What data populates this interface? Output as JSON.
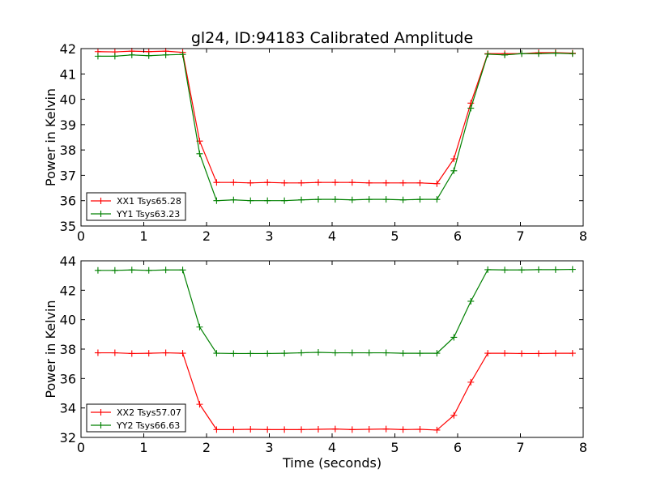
{
  "figure": {
    "title": "gl24, ID:94183 Calibrated Amplitude"
  },
  "chart_data": [
    {
      "type": "line",
      "title": "gl24, ID:94183 Calibrated Amplitude",
      "xlabel": "",
      "ylabel": "Power in Kelvin",
      "xlim": [
        0,
        8
      ],
      "ylim": [
        35,
        42
      ],
      "xticks": [
        0,
        1,
        2,
        3,
        4,
        5,
        6,
        7,
        8
      ],
      "yticks": [
        35,
        36,
        37,
        38,
        39,
        40,
        41,
        42
      ],
      "legend_position": "lower-left",
      "grid": false,
      "x": [
        0.27,
        0.54,
        0.81,
        1.08,
        1.35,
        1.62,
        1.89,
        2.16,
        2.43,
        2.7,
        2.97,
        3.24,
        3.51,
        3.78,
        4.05,
        4.32,
        4.59,
        4.86,
        5.13,
        5.4,
        5.67,
        5.94,
        6.21,
        6.48,
        6.75,
        7.02,
        7.29,
        7.56,
        7.83
      ],
      "series": [
        {
          "name": "XX1 Tsys65.28",
          "color": "#ff0000",
          "values": [
            41.88,
            41.87,
            41.9,
            41.88,
            41.9,
            41.85,
            38.35,
            36.72,
            36.72,
            36.7,
            36.72,
            36.7,
            36.7,
            36.72,
            36.72,
            36.72,
            36.7,
            36.7,
            36.7,
            36.7,
            36.67,
            37.65,
            39.85,
            41.8,
            41.8,
            41.8,
            41.84,
            41.84,
            41.82
          ]
        },
        {
          "name": "YY1 Tsys63.23",
          "color": "#008000",
          "values": [
            41.7,
            41.7,
            41.75,
            41.72,
            41.75,
            41.77,
            37.85,
            36.0,
            36.03,
            36.0,
            36.0,
            36.0,
            36.03,
            36.05,
            36.05,
            36.03,
            36.05,
            36.05,
            36.03,
            36.05,
            36.05,
            37.18,
            39.65,
            41.78,
            41.75,
            41.8,
            41.8,
            41.82,
            41.8
          ]
        }
      ]
    },
    {
      "type": "line",
      "title": "",
      "xlabel": "Time (seconds)",
      "ylabel": "Power in Kelvin",
      "xlim": [
        0,
        8
      ],
      "ylim": [
        32,
        44
      ],
      "xticks": [
        0,
        1,
        2,
        3,
        4,
        5,
        6,
        7,
        8
      ],
      "yticks": [
        32,
        34,
        36,
        38,
        40,
        42,
        44
      ],
      "legend_position": "lower-left",
      "grid": false,
      "x": [
        0.27,
        0.54,
        0.81,
        1.08,
        1.35,
        1.62,
        1.89,
        2.16,
        2.43,
        2.7,
        2.97,
        3.24,
        3.51,
        3.78,
        4.05,
        4.32,
        4.59,
        4.86,
        5.13,
        5.4,
        5.67,
        5.94,
        6.21,
        6.48,
        6.75,
        7.02,
        7.29,
        7.56,
        7.83
      ],
      "series": [
        {
          "name": "XX2 Tsys57.07",
          "color": "#ff0000",
          "values": [
            37.75,
            37.75,
            37.7,
            37.72,
            37.75,
            37.72,
            34.25,
            32.53,
            32.53,
            32.55,
            32.53,
            32.53,
            32.53,
            32.55,
            32.57,
            32.53,
            32.55,
            32.57,
            32.53,
            32.55,
            32.5,
            33.5,
            35.75,
            37.72,
            37.72,
            37.7,
            37.7,
            37.72,
            37.72
          ]
        },
        {
          "name": "YY2 Tsys66.63",
          "color": "#008000",
          "values": [
            43.35,
            43.35,
            43.38,
            43.35,
            43.38,
            43.38,
            39.5,
            37.72,
            37.7,
            37.7,
            37.7,
            37.72,
            37.75,
            37.78,
            37.75,
            37.75,
            37.75,
            37.75,
            37.72,
            37.72,
            37.72,
            38.8,
            41.25,
            43.4,
            43.38,
            43.38,
            43.4,
            43.4,
            43.42
          ]
        }
      ]
    }
  ]
}
